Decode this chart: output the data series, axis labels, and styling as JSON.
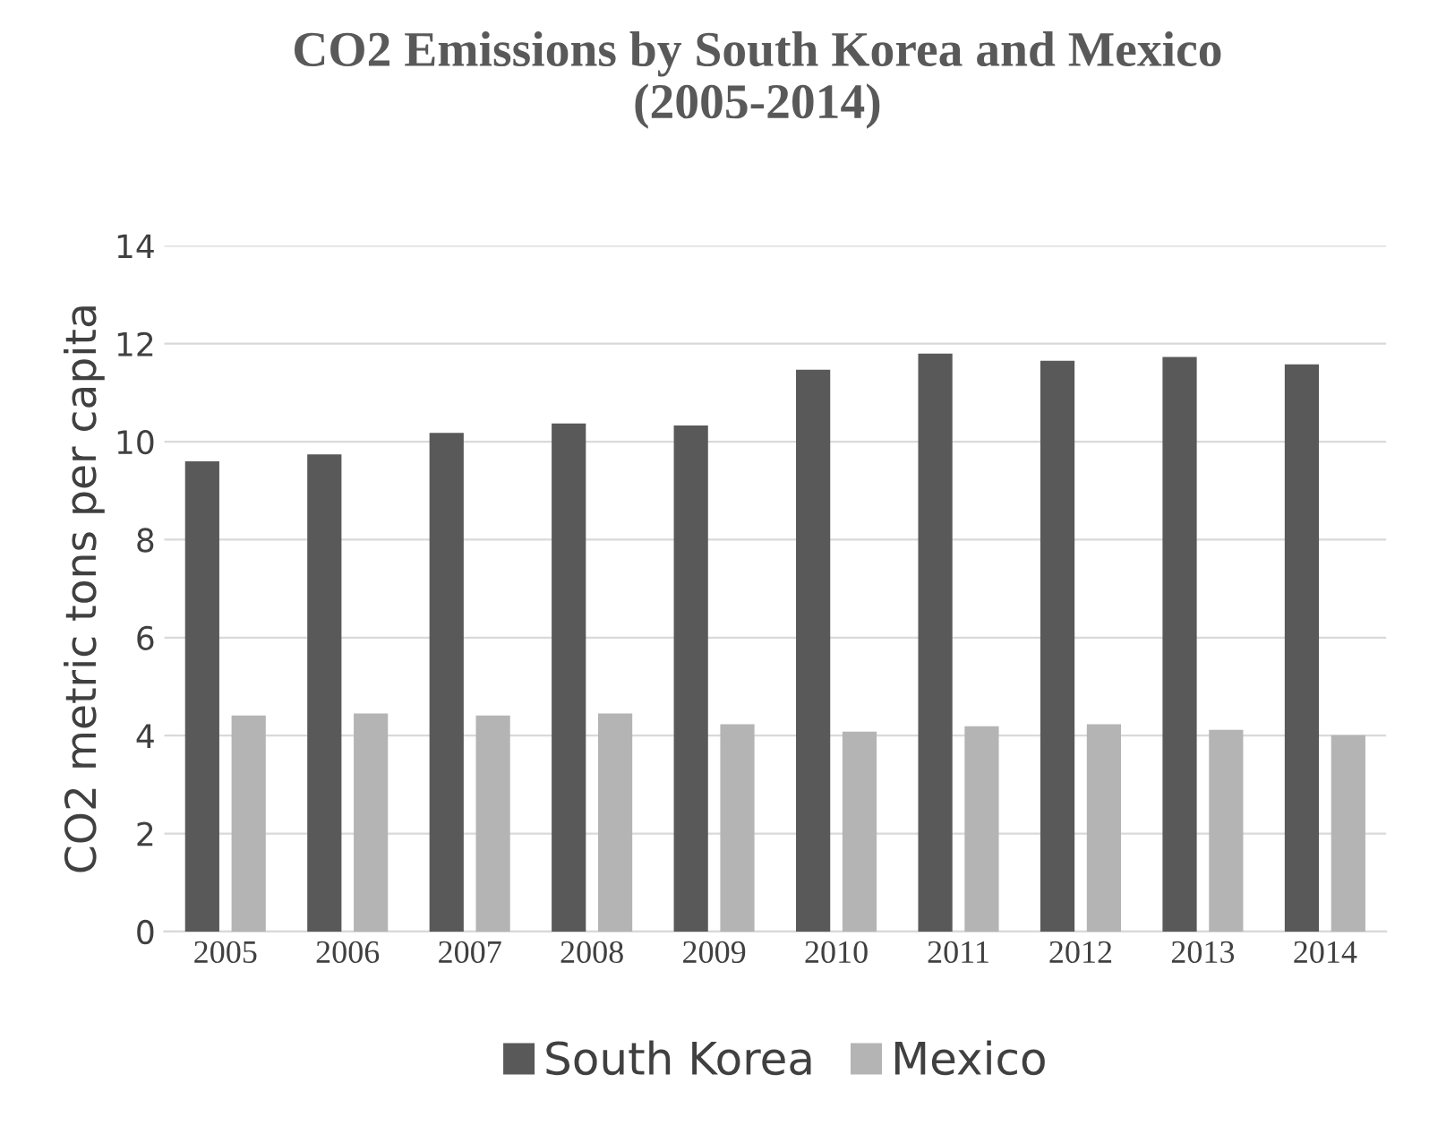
{
  "chart_data": {
    "type": "bar",
    "title": "CO2 Emissions by South Korea and Mexico\n(2005-2014)",
    "ylabel": "CO2 metric tons per capita",
    "categories": [
      "2005",
      "2006",
      "2007",
      "2008",
      "2009",
      "2010",
      "2011",
      "2012",
      "2013",
      "2014"
    ],
    "series": [
      {
        "name": "South Korea",
        "color": "#595959",
        "values": [
          9.6,
          9.74,
          10.18,
          10.37,
          10.33,
          11.47,
          11.8,
          11.65,
          11.73,
          11.58
        ]
      },
      {
        "name": "Mexico",
        "color": "#b4b4b4",
        "values": [
          4.41,
          4.45,
          4.41,
          4.45,
          4.23,
          4.08,
          4.19,
          4.23,
          4.12,
          4.01
        ]
      }
    ],
    "ylim": [
      0,
      14
    ],
    "yticks": [
      0,
      2,
      4,
      6,
      8,
      10,
      12,
      14
    ],
    "grid": "y",
    "legend": "bottom"
  }
}
